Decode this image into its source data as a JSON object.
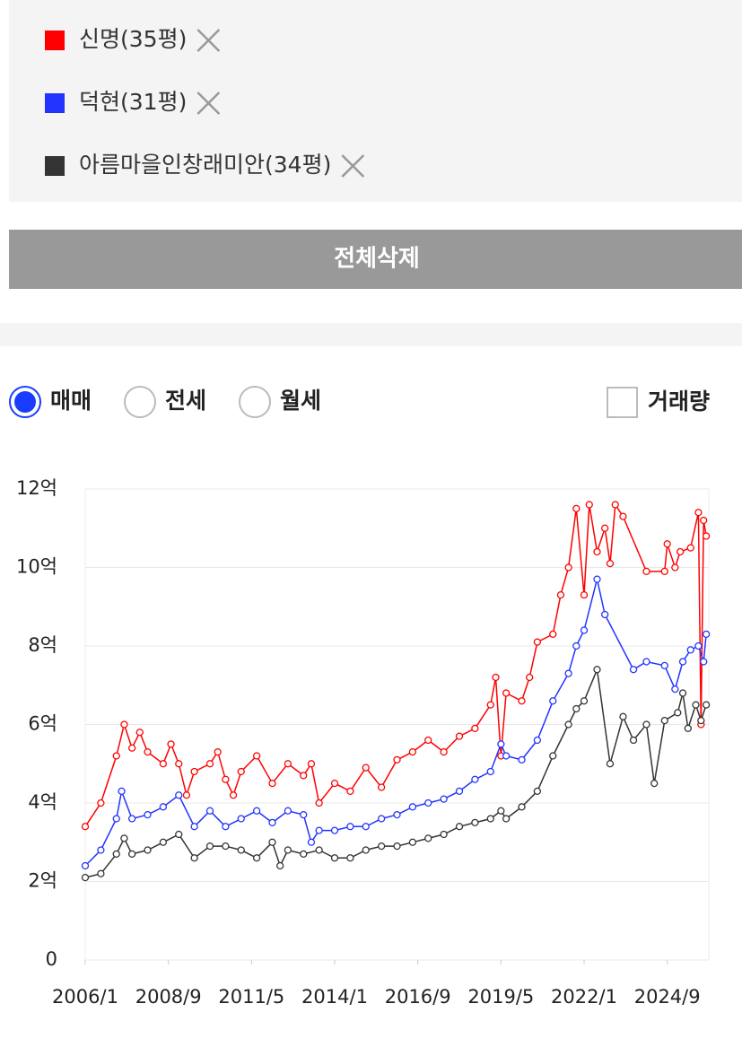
{
  "delete_all": "전체삭제",
  "radio_options": [
    "매매",
    "전세",
    "월세"
  ],
  "checkbox_label": "거래량",
  "chart_data": {
    "type": "line",
    "ylim": [
      0,
      12
    ],
    "yticks": [
      0,
      {
        "value": 2,
        "label": "2억"
      },
      {
        "value": 4,
        "label": "4억"
      },
      {
        "value": 6,
        "label": "6억"
      },
      {
        "value": 8,
        "label": "8억"
      },
      {
        "value": 10,
        "label": "10억"
      },
      {
        "value": 12,
        "label": "12억"
      }
    ],
    "xlim": [
      "2006/1",
      "2026/1"
    ],
    "xticks": [
      "2006/1",
      "2008/9",
      "2011/5",
      "2014/1",
      "2016/9",
      "2019/5",
      "2022/1",
      "2024/9"
    ],
    "grid": true,
    "series": [
      {
        "name": "신명(35평)",
        "color": "#ff0000",
        "x": [
          "2006/1",
          "2006/7",
          "2007/1",
          "2007/4",
          "2007/7",
          "2007/10",
          "2008/1",
          "2008/7",
          "2008/10",
          "2009/1",
          "2009/4",
          "2009/7",
          "2010/1",
          "2010/4",
          "2010/7",
          "2010/10",
          "2011/1",
          "2011/7",
          "2012/1",
          "2012/7",
          "2013/1",
          "2013/4",
          "2013/7",
          "2014/1",
          "2014/7",
          "2015/1",
          "2015/7",
          "2016/1",
          "2016/7",
          "2017/1",
          "2017/7",
          "2018/1",
          "2018/7",
          "2019/1",
          "2019/3",
          "2019/5",
          "2019/7",
          "2020/1",
          "2020/4",
          "2020/7",
          "2021/1",
          "2021/4",
          "2021/7",
          "2021/10",
          "2022/1",
          "2022/3",
          "2022/6",
          "2022/9",
          "2022/11",
          "2023/1",
          "2023/4",
          "2024/1",
          "2024/8",
          "2024/9",
          "2024/12",
          "2025/2",
          "2025/6",
          "2025/9",
          "2025/10",
          "2025/11",
          "2025/12"
        ],
        "values": [
          3.4,
          4.0,
          5.2,
          6.0,
          5.4,
          5.8,
          5.3,
          5.0,
          5.5,
          5.0,
          4.2,
          4.8,
          5.0,
          5.3,
          4.6,
          4.2,
          4.8,
          5.2,
          4.5,
          5.0,
          4.7,
          5.0,
          4.0,
          4.5,
          4.3,
          4.9,
          4.4,
          5.1,
          5.3,
          5.6,
          5.3,
          5.7,
          5.9,
          6.5,
          7.2,
          5.2,
          6.8,
          6.6,
          7.2,
          8.1,
          8.3,
          9.3,
          10.0,
          11.5,
          9.3,
          11.6,
          10.4,
          11.0,
          10.1,
          11.6,
          11.3,
          9.9,
          9.9,
          10.6,
          10.0,
          10.4,
          10.5,
          11.4,
          6.0,
          11.2,
          10.8
        ]
      },
      {
        "name": "덕현(31평)",
        "color": "#2233ff",
        "x": [
          "2006/1",
          "2006/7",
          "2007/1",
          "2007/3",
          "2007/7",
          "2008/1",
          "2008/7",
          "2009/1",
          "2009/7",
          "2010/1",
          "2010/7",
          "2011/1",
          "2011/7",
          "2012/1",
          "2012/7",
          "2013/1",
          "2013/4",
          "2013/7",
          "2014/1",
          "2014/7",
          "2015/1",
          "2015/7",
          "2016/1",
          "2016/7",
          "2017/1",
          "2017/7",
          "2018/1",
          "2018/7",
          "2019/1",
          "2019/5",
          "2019/7",
          "2020/1",
          "2020/7",
          "2021/1",
          "2021/7",
          "2021/10",
          "2022/1",
          "2022/6",
          "2022/9",
          "2023/8",
          "2024/1",
          "2024/8",
          "2024/12",
          "2025/3",
          "2025/6",
          "2025/9",
          "2025/11",
          "2025/12"
        ],
        "values": [
          2.4,
          2.8,
          3.6,
          4.3,
          3.6,
          3.7,
          3.9,
          4.2,
          3.4,
          3.8,
          3.4,
          3.6,
          3.8,
          3.5,
          3.8,
          3.7,
          3.0,
          3.3,
          3.3,
          3.4,
          3.4,
          3.6,
          3.7,
          3.9,
          4.0,
          4.1,
          4.3,
          4.6,
          4.8,
          5.5,
          5.2,
          5.1,
          5.6,
          6.6,
          7.3,
          8.0,
          8.4,
          9.7,
          8.8,
          7.4,
          7.6,
          7.5,
          6.9,
          7.6,
          7.9,
          8.0,
          7.6,
          8.3
        ]
      },
      {
        "name": "아름마을인창래미안(34평)",
        "color": "#333333",
        "x": [
          "2006/1",
          "2006/7",
          "2007/1",
          "2007/4",
          "2007/7",
          "2008/1",
          "2008/7",
          "2009/1",
          "2009/7",
          "2010/1",
          "2010/7",
          "2011/1",
          "2011/7",
          "2012/1",
          "2012/4",
          "2012/7",
          "2013/1",
          "2013/7",
          "2014/1",
          "2014/7",
          "2015/1",
          "2015/7",
          "2016/1",
          "2016/7",
          "2017/1",
          "2017/7",
          "2018/1",
          "2018/7",
          "2019/1",
          "2019/5",
          "2019/7",
          "2020/1",
          "2020/7",
          "2021/1",
          "2021/7",
          "2021/10",
          "2022/1",
          "2022/6",
          "2022/11",
          "2023/4",
          "2023/8",
          "2024/1",
          "2024/4",
          "2024/8",
          "2025/1",
          "2025/3",
          "2025/5",
          "2025/8",
          "2025/10",
          "2025/12"
        ],
        "values": [
          2.1,
          2.2,
          2.7,
          3.1,
          2.7,
          2.8,
          3.0,
          3.2,
          2.6,
          2.9,
          2.9,
          2.8,
          2.6,
          3.0,
          2.4,
          2.8,
          2.7,
          2.8,
          2.6,
          2.6,
          2.8,
          2.9,
          2.9,
          3.0,
          3.1,
          3.2,
          3.4,
          3.5,
          3.6,
          3.8,
          3.6,
          3.9,
          4.3,
          5.2,
          6.0,
          6.4,
          6.6,
          7.4,
          5.0,
          6.2,
          5.6,
          6.0,
          4.5,
          6.1,
          6.3,
          6.8,
          5.9,
          6.5,
          6.1,
          6.5
        ]
      }
    ]
  }
}
